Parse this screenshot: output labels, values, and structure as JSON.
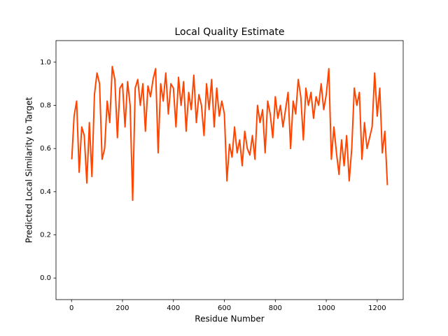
{
  "chart_data": {
    "type": "line",
    "title": "Local Quality Estimate",
    "x_label": "Residue Number",
    "y_label": "Predicted Local Similarity to Target",
    "x": [
      1,
      10,
      20,
      30,
      40,
      50,
      60,
      70,
      80,
      90,
      100,
      110,
      120,
      130,
      140,
      150,
      160,
      170,
      180,
      190,
      200,
      210,
      220,
      230,
      240,
      250,
      260,
      270,
      280,
      290,
      300,
      310,
      320,
      330,
      340,
      350,
      360,
      370,
      380,
      390,
      400,
      410,
      420,
      430,
      440,
      450,
      460,
      470,
      480,
      490,
      500,
      510,
      520,
      530,
      540,
      550,
      560,
      570,
      580,
      590,
      600,
      610,
      620,
      630,
      640,
      650,
      660,
      670,
      680,
      690,
      700,
      710,
      720,
      730,
      740,
      750,
      760,
      770,
      780,
      790,
      800,
      810,
      820,
      830,
      840,
      850,
      860,
      870,
      880,
      890,
      900,
      910,
      920,
      930,
      940,
      950,
      960,
      970,
      980,
      990,
      1000,
      1010,
      1020,
      1030,
      1040,
      1050,
      1060,
      1070,
      1080,
      1090,
      1100,
      1110,
      1120,
      1130,
      1140,
      1150,
      1160,
      1170,
      1180,
      1190,
      1200,
      1210,
      1220,
      1230,
      1240
    ],
    "series": [
      {
        "color": "#ff4500",
        "values": [
          0.55,
          0.75,
          0.82,
          0.49,
          0.7,
          0.66,
          0.44,
          0.72,
          0.47,
          0.85,
          0.95,
          0.9,
          0.55,
          0.6,
          0.82,
          0.72,
          0.98,
          0.92,
          0.65,
          0.88,
          0.9,
          0.7,
          0.91,
          0.8,
          0.36,
          0.88,
          0.92,
          0.8,
          0.9,
          0.68,
          0.89,
          0.84,
          0.92,
          0.97,
          0.58,
          0.9,
          0.82,
          0.95,
          0.76,
          0.9,
          0.88,
          0.7,
          0.93,
          0.8,
          0.91,
          0.68,
          0.86,
          0.78,
          0.94,
          0.72,
          0.85,
          0.8,
          0.66,
          0.9,
          0.78,
          0.92,
          0.7,
          0.88,
          0.75,
          0.82,
          0.76,
          0.45,
          0.62,
          0.56,
          0.7,
          0.58,
          0.64,
          0.52,
          0.68,
          0.6,
          0.57,
          0.66,
          0.55,
          0.8,
          0.72,
          0.78,
          0.58,
          0.82,
          0.76,
          0.65,
          0.84,
          0.74,
          0.8,
          0.7,
          0.78,
          0.86,
          0.6,
          0.82,
          0.76,
          0.92,
          0.84,
          0.64,
          0.88,
          0.8,
          0.86,
          0.74,
          0.84,
          0.8,
          0.9,
          0.78,
          0.85,
          0.97,
          0.55,
          0.7,
          0.58,
          0.48,
          0.64,
          0.52,
          0.66,
          0.45,
          0.6,
          0.88,
          0.8,
          0.86,
          0.55,
          0.72,
          0.6,
          0.65,
          0.7,
          0.95,
          0.75,
          0.88,
          0.58,
          0.68,
          0.43
        ]
      }
    ],
    "xlim": [
      -61,
      1302
    ],
    "xticks": [
      0,
      200,
      400,
      600,
      800,
      1000,
      1200
    ],
    "ylim": [
      -0.1,
      1.1
    ],
    "yticks": [
      {
        "value": 0,
        "label": "0.0"
      },
      0.2,
      0.4,
      0.6,
      0.8,
      {
        "value": 1,
        "label": "1.0"
      }
    ],
    "grid": false
  }
}
